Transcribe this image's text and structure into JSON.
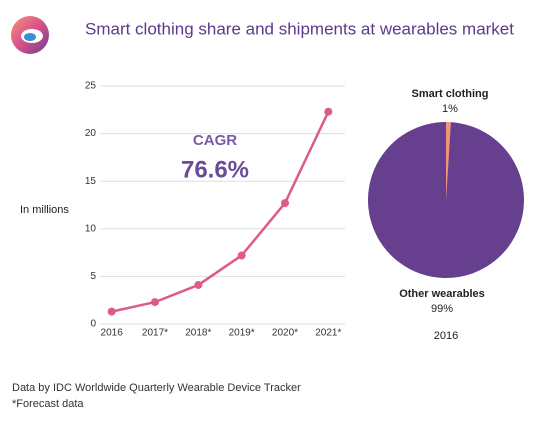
{
  "header": {
    "title": "Smart clothing share and shipments at wearables market"
  },
  "chart_data": [
    {
      "type": "line",
      "ylabel": "In millions",
      "annotations": [
        "CAGR",
        "76.6%"
      ],
      "categories": [
        "2016",
        "2017*",
        "2018*",
        "2019*",
        "2020*",
        "2021*"
      ],
      "values": [
        1.3,
        2.3,
        4.1,
        7.2,
        12.7,
        22.3
      ],
      "color": "#dd5b85",
      "ylim": [
        0,
        25
      ],
      "yticks": [
        0,
        5,
        10,
        15,
        20,
        25
      ],
      "grid": true
    },
    {
      "type": "pie",
      "subtitle": "2016",
      "categories": [
        "Smart clothing",
        "Other wearables"
      ],
      "values": [
        1,
        99
      ],
      "value_labels": [
        "1%",
        "99%"
      ],
      "colors": [
        "#f4927a",
        "#673f8f"
      ]
    }
  ],
  "footer": {
    "source": "Data by IDC Worldwide Quarterly Wearable Device Tracker",
    "note": "*Forecast data"
  }
}
